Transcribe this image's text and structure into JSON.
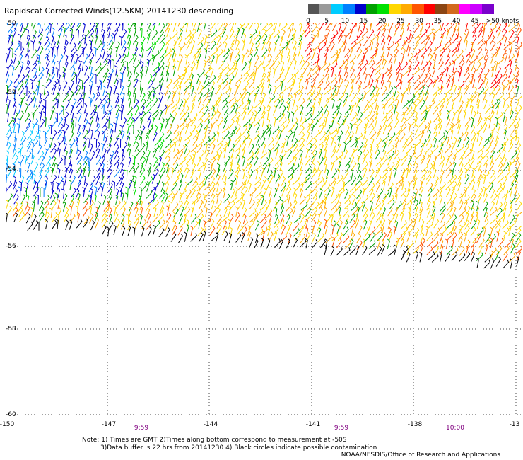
{
  "title": "Rapidscat Corrected Winds(12.5KM) 20141230 descending",
  "color_scale": {
    "unit_label": ">50 knots",
    "ticks": [
      "0",
      "5",
      "10",
      "15",
      "20",
      "25",
      "30",
      "35",
      "40",
      "45"
    ],
    "colors": [
      "#555555",
      "#9a9a9a",
      "#00ccff",
      "#0080ff",
      "#0000cc",
      "#00a000",
      "#00e000",
      "#ffd700",
      "#ffaa00",
      "#ff5500",
      "#ff0000",
      "#8b4513",
      "#d2691e",
      "#ff00ff",
      "#cc00ff",
      "#7a00cc"
    ]
  },
  "map": {
    "lat_labels": [
      "-50",
      "-52",
      "-54",
      "-56",
      "-58",
      "-60"
    ],
    "lon_labels": [
      "-150",
      "-147",
      "-144",
      "-141",
      "-138",
      "-13"
    ],
    "time_labels": [
      "9:59",
      "9:59",
      "10:00"
    ]
  },
  "notes": {
    "line1": "Note: 1) Times are GMT 2)Times along bottom correspond to measurement at -50S",
    "line2": "3)Data buffer is 22 hrs from 20141230 4) Black circles indicate possible contamination",
    "credit": "NOAA/NESDIS/Office of Research and Applications"
  }
}
